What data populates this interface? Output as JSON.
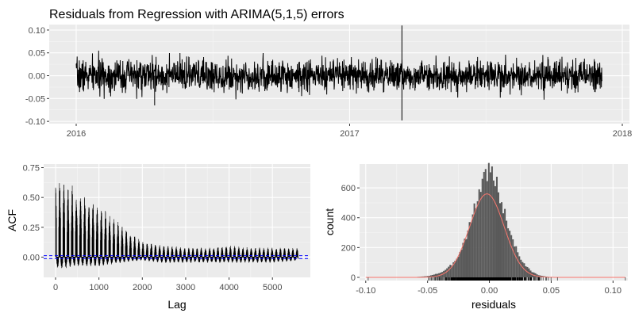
{
  "chart_data": [
    {
      "type": "line",
      "title": "Residuals from Regression with ARIMA(5,1,5) errors",
      "xlabel": "",
      "ylabel": "",
      "xlim": [
        "2016-01-01",
        "2018-01-01"
      ],
      "ylim": [
        -0.105,
        0.112
      ],
      "x_ticks": [
        "2016",
        "2017",
        "2018"
      ],
      "y_ticks": [
        "-0.10",
        "-0.05",
        "0.00",
        "0.05",
        "0.10"
      ],
      "series_envelope": {
        "x": [
          "2016-01-01",
          "2016-03-01",
          "2016-05-01",
          "2016-07-01",
          "2016-09-01",
          "2016-11-01",
          "2017-01-01",
          "2017-03-01",
          "2017-05-01",
          "2017-07-01",
          "2017-09-01",
          "2017-11-01",
          "2017-12-05"
        ],
        "upper": [
          0.05,
          0.05,
          0.045,
          0.045,
          0.045,
          0.045,
          0.045,
          0.04,
          0.04,
          0.045,
          0.04,
          0.045,
          0.045
        ],
        "lower": [
          -0.05,
          -0.05,
          -0.05,
          -0.05,
          -0.05,
          -0.05,
          -0.05,
          -0.05,
          -0.05,
          -0.05,
          -0.05,
          -0.05,
          -0.05
        ]
      },
      "outliers": [
        {
          "x": "2017-03-12",
          "y": 0.11
        },
        {
          "x": "2017-03-12",
          "y": -0.098
        },
        {
          "x": "2016-04-15",
          "y": -0.065
        }
      ],
      "grid": true
    },
    {
      "type": "bar",
      "subtype": "acf",
      "title": "",
      "xlabel": "Lag",
      "ylabel": "ACF",
      "xlim": [
        0,
        5600
      ],
      "ylim": [
        -0.17,
        0.78
      ],
      "x_ticks": [
        "0",
        "1000",
        "2000",
        "3000",
        "4000",
        "5000"
      ],
      "y_ticks": [
        "0.00",
        "0.25",
        "0.50",
        "0.75"
      ],
      "upper_envelope": {
        "lag": [
          20,
          200,
          400,
          700,
          1000,
          1500,
          2000,
          2500,
          3000,
          3500,
          4000,
          4500,
          5000,
          5600
        ],
        "acf": [
          0.72,
          0.68,
          0.6,
          0.52,
          0.45,
          0.28,
          0.13,
          0.1,
          0.08,
          0.08,
          0.1,
          0.08,
          0.08,
          0.08
        ]
      },
      "lower_envelope": {
        "lag": [
          20,
          200,
          400,
          700,
          1000,
          1500,
          2000,
          2500,
          3000,
          3500,
          4000,
          4500,
          5000,
          5600
        ],
        "acf": [
          -0.1,
          -0.1,
          -0.08,
          -0.08,
          -0.08,
          -0.05,
          -0.03,
          -0.05,
          -0.05,
          -0.05,
          -0.05,
          -0.05,
          -0.05,
          -0.03
        ]
      },
      "confidence_bound": 0.012,
      "grid": true
    },
    {
      "type": "bar",
      "subtype": "histogram",
      "title": "",
      "xlabel": "residuals",
      "ylabel": "count",
      "xlim": [
        -0.105,
        0.112
      ],
      "ylim": [
        0,
        760
      ],
      "x_ticks": [
        "-0.10",
        "-0.05",
        "0.00",
        "0.05",
        "0.10"
      ],
      "y_ticks": [
        "0",
        "200",
        "400",
        "600"
      ],
      "bins": {
        "x": [
          -0.07,
          -0.06,
          -0.05,
          -0.04,
          -0.035,
          -0.03,
          -0.025,
          -0.02,
          -0.015,
          -0.01,
          -0.005,
          0.0,
          0.005,
          0.01,
          0.015,
          0.02,
          0.025,
          0.03,
          0.035,
          0.04,
          0.045,
          0.05,
          0.055
        ],
        "count": [
          1,
          2,
          8,
          30,
          50,
          90,
          150,
          250,
          380,
          520,
          670,
          730,
          650,
          500,
          350,
          230,
          130,
          70,
          35,
          15,
          6,
          2,
          1
        ]
      },
      "normal_curve": {
        "mean": -0.002,
        "sd": 0.014,
        "peak": 560,
        "color": "#f8766d"
      },
      "rug": true,
      "grid": true
    }
  ]
}
